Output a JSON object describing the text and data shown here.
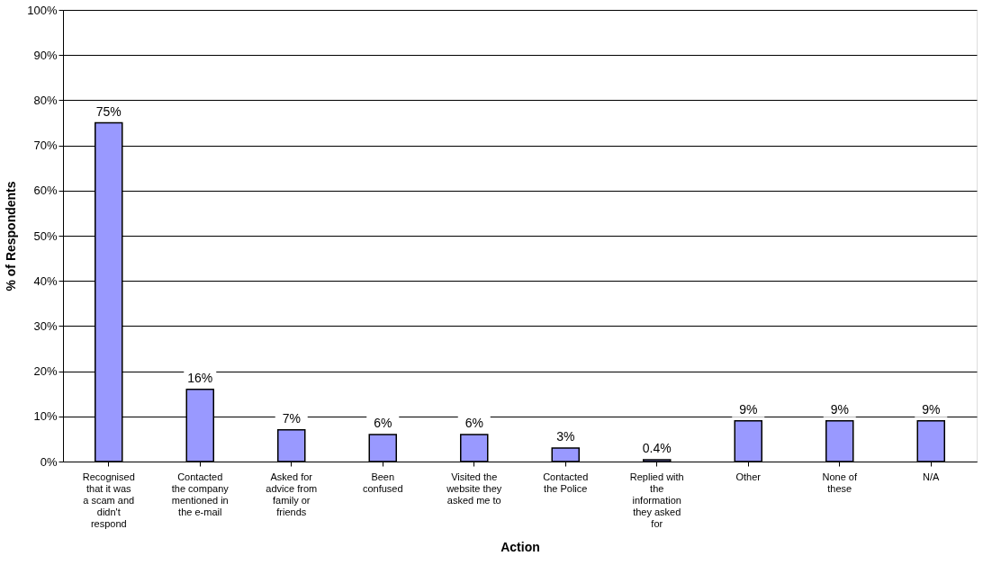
{
  "chart_data": {
    "type": "bar",
    "xlabel": "Action",
    "ylabel": "% of Respondents",
    "categories": [
      "Recognised that it was a scam and didn't respond",
      "Contacted the company mentioned in the e-mail",
      "Asked for advice from family or friends",
      "Been confused",
      "Visited the website they asked me to",
      "Contacted the Police",
      "Replied with the information they asked for",
      "Other",
      "None of these",
      "N/A"
    ],
    "values": [
      75,
      16,
      7,
      6,
      6,
      3,
      0.4,
      9,
      9,
      9
    ],
    "value_labels": [
      "75%",
      "16%",
      "7%",
      "6%",
      "6%",
      "3%",
      "0.4%",
      "9%",
      "9%",
      "9%"
    ],
    "color": "#9999ff",
    "ylim": [
      0,
      100
    ],
    "yticks": [
      {
        "value": 0,
        "label": "0%"
      },
      {
        "value": 10,
        "label": "10%"
      },
      {
        "value": 20,
        "label": "20%"
      },
      {
        "value": 30,
        "label": "30%"
      },
      {
        "value": 40,
        "label": "40%"
      },
      {
        "value": 50,
        "label": "50%"
      },
      {
        "value": 60,
        "label": "60%"
      },
      {
        "value": 70,
        "label": "70%"
      },
      {
        "value": 80,
        "label": "80%"
      },
      {
        "value": 90,
        "label": "90%"
      },
      {
        "value": 100,
        "label": "100%"
      }
    ],
    "grid": "y"
  }
}
